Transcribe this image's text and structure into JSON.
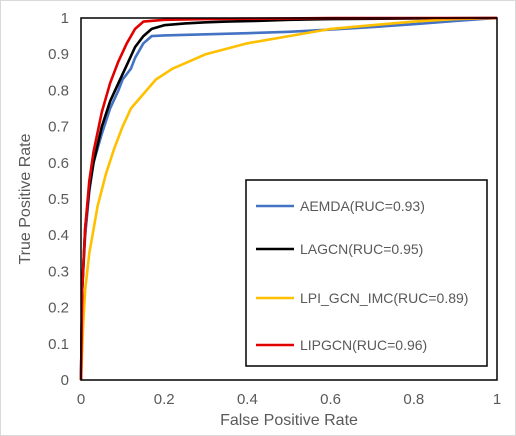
{
  "chart_data": {
    "type": "line",
    "title": "",
    "xlabel": "False Positive Rate",
    "ylabel": "True Positive Rate",
    "xlim": [
      0,
      1
    ],
    "ylim": [
      0,
      1
    ],
    "xticks": [
      "0",
      "0.2",
      "0.4",
      "0.6",
      "0.8",
      "1"
    ],
    "yticks": [
      "0",
      "0.1",
      "0.2",
      "0.3",
      "0.4",
      "0.5",
      "0.6",
      "0.7",
      "0.8",
      "0.9",
      "1"
    ],
    "grid": false,
    "legend_position": "lower-right",
    "series": [
      {
        "name": "AEMDA(RUC=0.93)",
        "color": "#4472C4",
        "x": [
          0,
          0.003,
          0.01,
          0.02,
          0.03,
          0.05,
          0.07,
          0.09,
          0.1,
          0.12,
          0.13,
          0.15,
          0.17,
          0.2,
          0.3,
          0.4,
          0.5,
          0.6,
          0.7,
          0.8,
          0.9,
          1.0
        ],
        "y": [
          0,
          0.25,
          0.4,
          0.52,
          0.6,
          0.68,
          0.75,
          0.8,
          0.83,
          0.86,
          0.89,
          0.93,
          0.95,
          0.952,
          0.955,
          0.958,
          0.962,
          0.968,
          0.975,
          0.983,
          0.992,
          1.0
        ]
      },
      {
        "name": "LAGCN(RUC=0.95)",
        "color": "#000000",
        "x": [
          0,
          0.003,
          0.01,
          0.02,
          0.03,
          0.05,
          0.07,
          0.09,
          0.11,
          0.13,
          0.15,
          0.17,
          0.2,
          0.25,
          0.3,
          0.35,
          0.42,
          0.5,
          0.6,
          0.8,
          1.0
        ],
        "y": [
          0,
          0.25,
          0.42,
          0.53,
          0.6,
          0.7,
          0.77,
          0.82,
          0.87,
          0.92,
          0.95,
          0.97,
          0.98,
          0.985,
          0.988,
          0.99,
          0.992,
          0.995,
          0.997,
          0.999,
          1.0
        ]
      },
      {
        "name": "LPI_GCN_IMC(RUC=0.89)",
        "color": "#FFC000",
        "x": [
          0,
          0.005,
          0.01,
          0.02,
          0.04,
          0.06,
          0.08,
          0.1,
          0.12,
          0.15,
          0.18,
          0.22,
          0.26,
          0.3,
          0.35,
          0.4,
          0.45,
          0.5,
          0.55,
          0.6,
          0.7,
          0.8,
          0.9,
          1.0
        ],
        "y": [
          0,
          0.15,
          0.25,
          0.35,
          0.48,
          0.57,
          0.64,
          0.7,
          0.75,
          0.79,
          0.83,
          0.86,
          0.88,
          0.9,
          0.915,
          0.93,
          0.94,
          0.95,
          0.96,
          0.97,
          0.98,
          0.99,
          0.997,
          1.0
        ]
      },
      {
        "name": "LIPGCN(RUC=0.96)",
        "color": "#E00000",
        "x": [
          0,
          0.003,
          0.01,
          0.02,
          0.03,
          0.05,
          0.07,
          0.09,
          0.11,
          0.13,
          0.15,
          0.2,
          0.3,
          0.4,
          0.5,
          0.6,
          0.8,
          1.0
        ],
        "y": [
          0,
          0.25,
          0.42,
          0.55,
          0.63,
          0.74,
          0.82,
          0.88,
          0.93,
          0.97,
          0.99,
          0.995,
          0.997,
          0.998,
          0.999,
          1.0,
          1.0,
          1.0
        ]
      }
    ]
  }
}
